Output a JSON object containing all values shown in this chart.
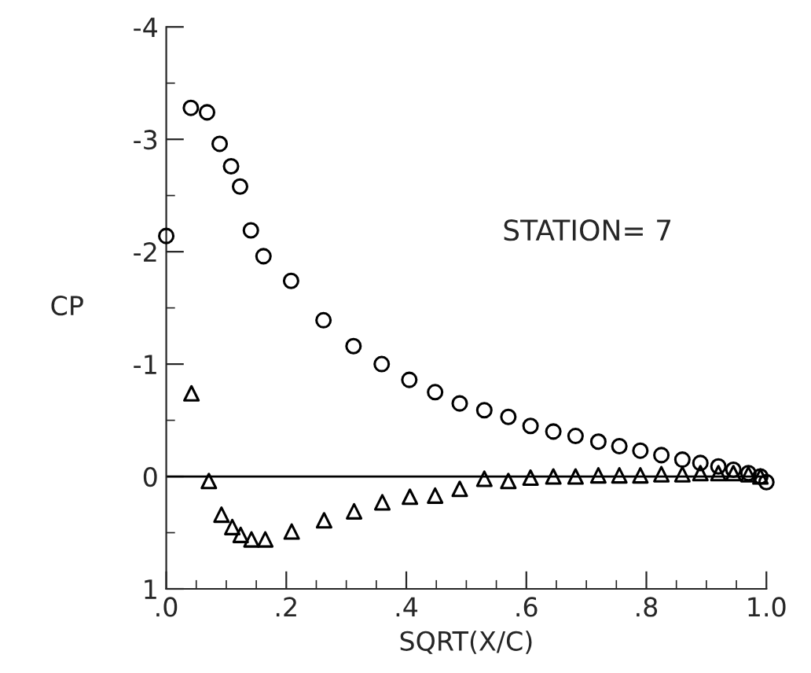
{
  "chart_data": {
    "type": "scatter",
    "xlabel": "SQRT(X/C)",
    "ylabel": "CP",
    "annotations": [
      "STATION= 7"
    ],
    "xlim": [
      0,
      1
    ],
    "ylim": [
      1,
      -4
    ],
    "xticks": [
      {
        "value": 0,
        "label": ".0"
      },
      {
        "value": 0.2,
        "label": ".2"
      },
      {
        "value": 0.4,
        "label": ".4"
      },
      {
        "value": 0.6,
        "label": ".6"
      },
      {
        "value": 0.8,
        "label": ".8"
      },
      {
        "value": 1.0,
        "label": "1.0"
      }
    ],
    "yticks": [
      -4,
      -3,
      -2,
      -1,
      0,
      1
    ],
    "ref_lines": [
      {
        "axis": "y",
        "value": 0,
        "color": "#000000"
      }
    ],
    "grid": false,
    "legend": false,
    "series": [
      {
        "color": "#000000",
        "marker": "circle",
        "x": [
          0,
          0.041,
          0.068,
          0.089,
          0.108,
          0.123,
          0.141,
          0.162,
          0.208,
          0.262,
          0.312,
          0.359,
          0.405,
          0.448,
          0.489,
          0.53,
          0.57,
          0.607,
          0.645,
          0.682,
          0.72,
          0.755,
          0.79,
          0.825,
          0.86,
          0.89,
          0.92,
          0.945,
          0.97,
          0.99,
          1.0
        ],
        "values": [
          -2.14,
          -3.28,
          -3.24,
          -2.96,
          -2.76,
          -2.58,
          -2.19,
          -1.96,
          -1.74,
          -1.39,
          -1.16,
          -1.0,
          -0.86,
          -0.75,
          -0.65,
          -0.59,
          -0.53,
          -0.45,
          -0.4,
          -0.36,
          -0.31,
          -0.27,
          -0.23,
          -0.19,
          -0.15,
          -0.12,
          -0.09,
          -0.06,
          -0.03,
          0.0,
          0.05
        ]
      },
      {
        "color": "#000000",
        "marker": "triangle",
        "x": [
          0.042,
          0.071,
          0.092,
          0.11,
          0.124,
          0.142,
          0.165,
          0.209,
          0.263,
          0.313,
          0.36,
          0.406,
          0.448,
          0.489,
          0.53,
          0.57,
          0.607,
          0.645,
          0.682,
          0.72,
          0.755,
          0.79,
          0.825,
          0.86,
          0.89,
          0.92,
          0.945,
          0.97,
          0.99
        ],
        "values": [
          -0.74,
          0.04,
          0.34,
          0.45,
          0.52,
          0.56,
          0.56,
          0.49,
          0.39,
          0.31,
          0.23,
          0.18,
          0.17,
          0.11,
          0.02,
          0.04,
          0.01,
          0.0,
          0.0,
          -0.01,
          -0.01,
          -0.01,
          -0.02,
          -0.02,
          -0.03,
          -0.03,
          -0.03,
          -0.02,
          0.0
        ]
      }
    ]
  }
}
